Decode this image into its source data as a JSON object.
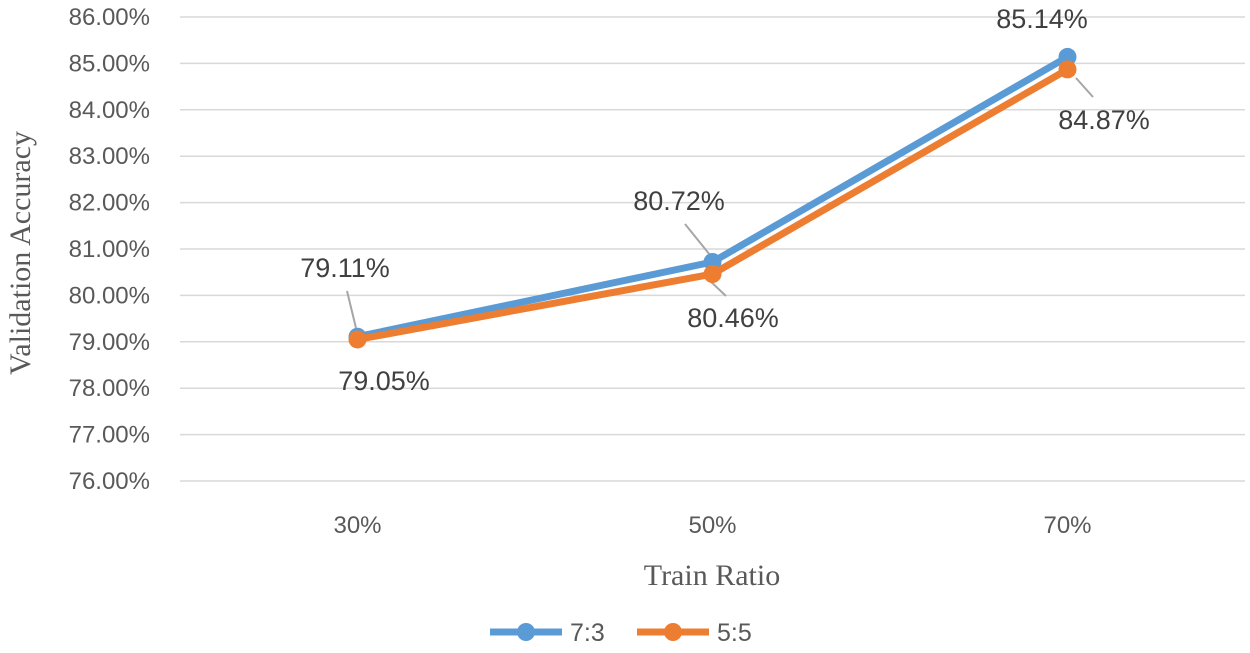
{
  "chart_data": {
    "type": "line",
    "categories": [
      "30%",
      "50%",
      "70%"
    ],
    "series": [
      {
        "name": "7:3",
        "values": [
          0.7911,
          0.8072,
          0.8514
        ],
        "labels": [
          "79.11%",
          "80.72%",
          "85.14%"
        ],
        "color": "#5B9BD5"
      },
      {
        "name": "5:5",
        "values": [
          0.7905,
          0.8046,
          0.8487
        ],
        "labels": [
          "79.05%",
          "80.46%",
          "84.87%"
        ],
        "color": "#ED7D31"
      }
    ],
    "xlabel": "Train Ratio",
    "ylabel": "Validation Accuracy",
    "ylim": [
      0.76,
      0.86
    ],
    "yticks": [
      {
        "value": 0.76,
        "label": "76.00%"
      },
      {
        "value": 0.77,
        "label": "77.00%"
      },
      {
        "value": 0.78,
        "label": "78.00%"
      },
      {
        "value": 0.79,
        "label": "79.00%"
      },
      {
        "value": 0.8,
        "label": "80.00%"
      },
      {
        "value": 0.81,
        "label": "81.00%"
      },
      {
        "value": 0.82,
        "label": "82.00%"
      },
      {
        "value": 0.83,
        "label": "83.00%"
      },
      {
        "value": 0.84,
        "label": "84.00%"
      },
      {
        "value": 0.85,
        "label": "85.00%"
      },
      {
        "value": 0.86,
        "label": "86.00%"
      }
    ],
    "grid": true,
    "legend": "bottom",
    "gridColor": "#D9D9D9",
    "leaderColor": "#A6A6A6"
  }
}
